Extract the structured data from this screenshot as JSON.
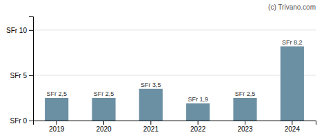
{
  "chart_data": {
    "type": "bar",
    "categories": [
      "2019",
      "2020",
      "2021",
      "2022",
      "2023",
      "2024"
    ],
    "values": [
      2.5,
      2.5,
      3.5,
      1.9,
      2.5,
      8.2
    ],
    "value_labels": [
      "SFr 2,5",
      "SFr 2,5",
      "SFr 3,5",
      "SFr 1,9",
      "SFr 2,5",
      "SFr 8,2"
    ],
    "data_labels": true,
    "color": "#6b8fa3",
    "ylim": [
      0,
      11.5
    ],
    "yticks": [
      {
        "value": 0,
        "label": "SFr 0"
      },
      {
        "value": 5,
        "label": "SFr 5"
      },
      {
        "value": 10,
        "label": "SFr 10"
      }
    ],
    "grid": true,
    "annotations": [
      "(c) Trivano.com"
    ]
  }
}
